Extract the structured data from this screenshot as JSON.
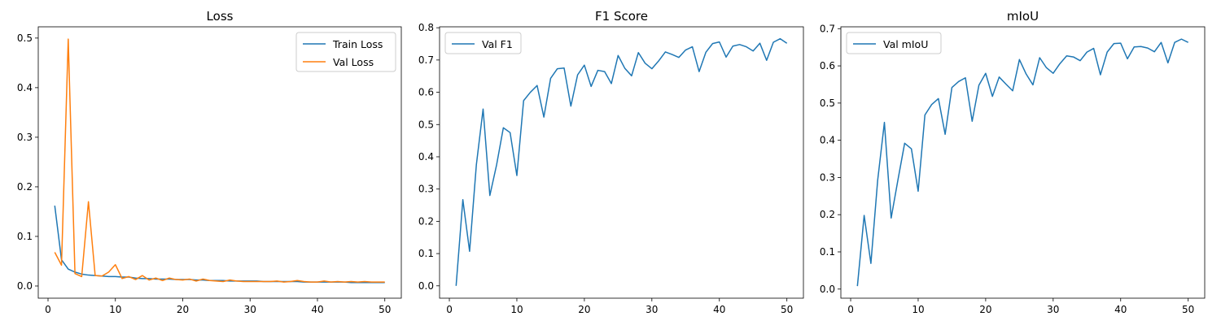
{
  "colors": {
    "train": "#1f77b4",
    "val": "#ff7f0e",
    "blue": "#1f77b4"
  },
  "chart_data": [
    {
      "type": "line",
      "title": "Loss",
      "xlabel": "",
      "ylabel": "",
      "xlim": [
        -1.45,
        52.45
      ],
      "ylim": [
        -0.0246,
        0.5227
      ],
      "xticks": [
        0,
        10,
        20,
        30,
        40,
        50
      ],
      "yticks": [
        0.0,
        0.1,
        0.2,
        0.3,
        0.4,
        0.5
      ],
      "ytick_labels": [
        "0.0",
        "0.1",
        "0.2",
        "0.3",
        "0.4",
        "0.5"
      ],
      "legend_position": "top-right",
      "x": [
        1,
        2,
        3,
        4,
        5,
        6,
        7,
        8,
        9,
        10,
        11,
        12,
        13,
        14,
        15,
        16,
        17,
        18,
        19,
        20,
        21,
        22,
        23,
        24,
        25,
        26,
        27,
        28,
        29,
        30,
        31,
        32,
        33,
        34,
        35,
        36,
        37,
        38,
        39,
        40,
        41,
        42,
        43,
        44,
        45,
        46,
        47,
        48,
        49,
        50
      ],
      "series": [
        {
          "name": "Train Loss",
          "color": "#1f77b4",
          "values": [
            0.162,
            0.053,
            0.034,
            0.028,
            0.024,
            0.022,
            0.021,
            0.02,
            0.019,
            0.019,
            0.018,
            0.018,
            0.016,
            0.015,
            0.015,
            0.014,
            0.014,
            0.014,
            0.013,
            0.013,
            0.013,
            0.012,
            0.012,
            0.011,
            0.011,
            0.011,
            0.01,
            0.01,
            0.01,
            0.01,
            0.01,
            0.009,
            0.009,
            0.009,
            0.009,
            0.009,
            0.009,
            0.008,
            0.008,
            0.008,
            0.008,
            0.008,
            0.008,
            0.008,
            0.007,
            0.007,
            0.007,
            0.007,
            0.007,
            0.007
          ]
        },
        {
          "name": "Val Loss",
          "color": "#ff7f0e",
          "values": [
            0.068,
            0.042,
            0.498,
            0.025,
            0.019,
            0.17,
            0.021,
            0.02,
            0.028,
            0.043,
            0.015,
            0.019,
            0.013,
            0.021,
            0.012,
            0.016,
            0.011,
            0.016,
            0.013,
            0.012,
            0.014,
            0.01,
            0.014,
            0.011,
            0.01,
            0.009,
            0.012,
            0.01,
            0.009,
            0.009,
            0.009,
            0.009,
            0.009,
            0.01,
            0.008,
            0.009,
            0.011,
            0.009,
            0.008,
            0.008,
            0.01,
            0.008,
            0.009,
            0.008,
            0.009,
            0.008,
            0.009,
            0.008,
            0.008,
            0.008
          ]
        }
      ]
    },
    {
      "type": "line",
      "title": "F1 Score",
      "xlabel": "",
      "ylabel": "",
      "xlim": [
        -1.45,
        52.45
      ],
      "ylim": [
        -0.0383,
        0.8029
      ],
      "xticks": [
        0,
        10,
        20,
        30,
        40,
        50
      ],
      "yticks": [
        0.0,
        0.1,
        0.2,
        0.3,
        0.4,
        0.5,
        0.6,
        0.7,
        0.8
      ],
      "ytick_labels": [
        "0.0",
        "0.1",
        "0.2",
        "0.3",
        "0.4",
        "0.5",
        "0.6",
        "0.7",
        "0.8"
      ],
      "legend_position": "top-left",
      "x": [
        1,
        2,
        3,
        4,
        5,
        6,
        7,
        8,
        9,
        10,
        11,
        12,
        13,
        14,
        15,
        16,
        17,
        18,
        19,
        20,
        21,
        22,
        23,
        24,
        25,
        26,
        27,
        28,
        29,
        30,
        31,
        32,
        33,
        34,
        35,
        36,
        37,
        38,
        39,
        40,
        41,
        42,
        43,
        44,
        45,
        46,
        47,
        48,
        49,
        50
      ],
      "series": [
        {
          "name": "Val F1",
          "color": "#1f77b4",
          "values": [
            0.0,
            0.267,
            0.107,
            0.375,
            0.548,
            0.28,
            0.375,
            0.49,
            0.475,
            0.342,
            0.574,
            0.6,
            0.621,
            0.523,
            0.643,
            0.673,
            0.675,
            0.557,
            0.654,
            0.684,
            0.618,
            0.668,
            0.664,
            0.627,
            0.714,
            0.674,
            0.651,
            0.723,
            0.69,
            0.673,
            0.697,
            0.725,
            0.717,
            0.708,
            0.731,
            0.741,
            0.664,
            0.724,
            0.751,
            0.756,
            0.709,
            0.743,
            0.748,
            0.741,
            0.728,
            0.752,
            0.699,
            0.755,
            0.766,
            0.752
          ]
        }
      ]
    },
    {
      "type": "line",
      "title": "mIoU",
      "xlabel": "",
      "ylabel": "",
      "xlim": [
        -1.45,
        52.45
      ],
      "ylim": [
        -0.0245,
        0.705
      ],
      "xticks": [
        0,
        10,
        20,
        30,
        40,
        50
      ],
      "yticks": [
        0.0,
        0.1,
        0.2,
        0.3,
        0.4,
        0.5,
        0.6,
        0.7
      ],
      "ytick_labels": [
        "0.0",
        "0.1",
        "0.2",
        "0.3",
        "0.4",
        "0.5",
        "0.6",
        "0.7"
      ],
      "legend_position": "top-left",
      "x": [
        1,
        2,
        3,
        4,
        5,
        6,
        7,
        8,
        9,
        10,
        11,
        12,
        13,
        14,
        15,
        16,
        17,
        18,
        19,
        20,
        21,
        22,
        23,
        24,
        25,
        26,
        27,
        28,
        29,
        30,
        31,
        32,
        33,
        34,
        35,
        36,
        37,
        38,
        39,
        40,
        41,
        42,
        43,
        44,
        45,
        46,
        47,
        48,
        49,
        50
      ],
      "series": [
        {
          "name": "Val mIoU",
          "color": "#1f77b4",
          "values": [
            0.008,
            0.198,
            0.069,
            0.292,
            0.448,
            0.191,
            0.293,
            0.392,
            0.377,
            0.263,
            0.468,
            0.496,
            0.512,
            0.416,
            0.542,
            0.558,
            0.568,
            0.451,
            0.548,
            0.58,
            0.518,
            0.57,
            0.551,
            0.533,
            0.617,
            0.578,
            0.549,
            0.622,
            0.595,
            0.58,
            0.606,
            0.627,
            0.624,
            0.614,
            0.637,
            0.647,
            0.576,
            0.637,
            0.66,
            0.661,
            0.619,
            0.651,
            0.652,
            0.648,
            0.638,
            0.663,
            0.608,
            0.663,
            0.672,
            0.663
          ]
        }
      ]
    }
  ]
}
